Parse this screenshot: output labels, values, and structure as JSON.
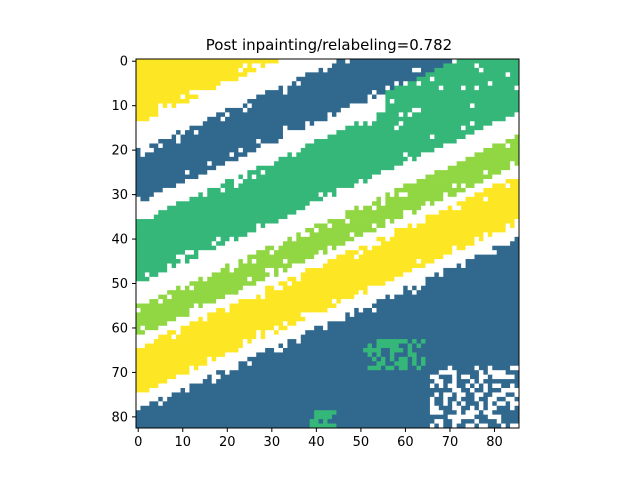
{
  "chart_data": {
    "type": "heatmap",
    "title": "Post inpainting/relabeling=0.782",
    "xlabel": "",
    "ylabel": "",
    "grid": false,
    "xlim": [
      -0.5,
      85.5
    ],
    "ylim": [
      82.5,
      -0.5
    ],
    "x_ticks": [
      0,
      10,
      20,
      30,
      40,
      50,
      60,
      70,
      80
    ],
    "y_ticks": [
      0,
      10,
      20,
      30,
      40,
      50,
      60,
      70,
      80
    ],
    "x_tick_labels": [
      "0",
      "10",
      "20",
      "30",
      "40",
      "50",
      "60",
      "70",
      "80"
    ],
    "y_tick_labels": [
      "0",
      "10",
      "20",
      "30",
      "40",
      "50",
      "60",
      "70",
      "80"
    ],
    "grid_size": {
      "cols": 86,
      "rows": 83
    },
    "colors": {
      "yellow": "#fde725",
      "lime": "#90d743",
      "green": "#35b779",
      "blue": "#31688e",
      "white": "#ffffff"
    },
    "band_description_order": [
      "yellow",
      "white-noise",
      "blue",
      "green",
      "lime",
      "yellow",
      "blue"
    ],
    "regions": [
      {
        "label": "yellow",
        "color": "#fde725"
      },
      {
        "label": "white (masked)",
        "color": "#ffffff"
      },
      {
        "label": "blue",
        "color": "#31688e"
      },
      {
        "label": "green",
        "color": "#35b779"
      },
      {
        "label": "lime",
        "color": "#90d743"
      }
    ]
  }
}
